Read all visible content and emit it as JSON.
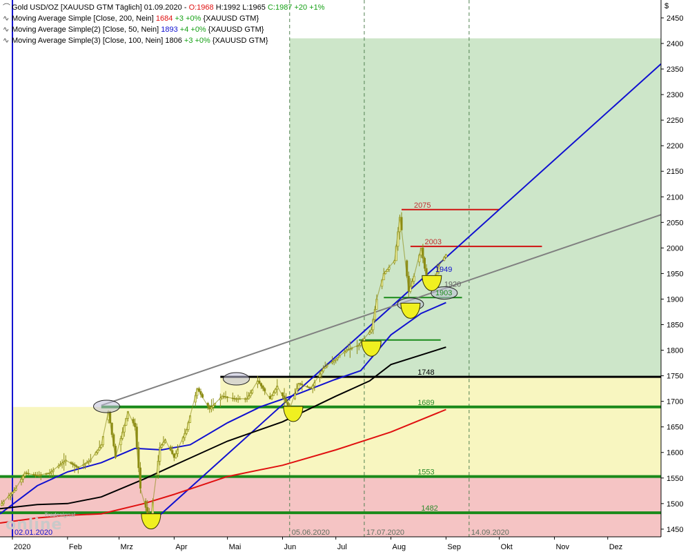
{
  "legend": {
    "main": {
      "prefix": "Gold USD/OZ [XAUUSD GTM  Täglich] 01.09.2020 - ",
      "o": "O:1968",
      "hl": " H:1992 L:1965 ",
      "c": "C:1987 +20 +1%"
    },
    "ma1": {
      "prefix": "Moving Average Simple [Close, 200, Nein] ",
      "value": "1684",
      "change": "+3 +0%",
      "suffix": " {XAUUSD GTM}"
    },
    "ma2": {
      "prefix": "Moving Average Simple(2) [Close, 50, Nein] ",
      "value": "1893",
      "change": "+4 +0%",
      "suffix": " {XAUUSD GTM}"
    },
    "ma3": {
      "prefix": "Moving Average Simple(3) [Close, 100, Nein] ",
      "value": "1806",
      "change": "+3 +0%",
      "suffix": " {XAUUSD GTM}"
    }
  },
  "logo": {
    "small": "Tradesignal",
    "big": "online"
  },
  "colors": {
    "red_zone": "#f5c4c4",
    "yellow_zone": "#f8f6c0",
    "green_zone": "#cde6c9",
    "price": "#8c8c14",
    "ma200": "#e01010",
    "ma50": "#1010d0",
    "ma100": "#000000",
    "trend_blue": "#1010d0",
    "trend_gray": "#808080",
    "support_green": "#1a8a1a"
  },
  "chart_data": {
    "type": "candlestick",
    "title": "Gold USD/OZ [XAUUSD GTM  Täglich]",
    "y_unit": "$",
    "ylim": [
      1435,
      2485
    ],
    "y_ticks": [
      1450,
      1500,
      1550,
      1600,
      1650,
      1700,
      1750,
      1800,
      1850,
      1900,
      1950,
      2000,
      2050,
      2100,
      2150,
      2200,
      2250,
      2300,
      2350,
      2400,
      2450
    ],
    "x_range": [
      "2019-12-25",
      "2020-12-31"
    ],
    "x_ticks": [
      {
        "label": "2020",
        "date": "2020-01-01"
      },
      {
        "label": "Feb",
        "date": "2020-02-01"
      },
      {
        "label": "Mrz",
        "date": "2020-03-01"
      },
      {
        "label": "Apr",
        "date": "2020-04-01"
      },
      {
        "label": "Mai",
        "date": "2020-05-01"
      },
      {
        "label": "Jun",
        "date": "2020-06-01"
      },
      {
        "label": "Jul",
        "date": "2020-07-01"
      },
      {
        "label": "Aug",
        "date": "2020-08-01"
      },
      {
        "label": "Sep",
        "date": "2020-09-01"
      },
      {
        "label": "Okt",
        "date": "2020-10-01"
      },
      {
        "label": "Nov",
        "date": "2020-11-01"
      },
      {
        "label": "Dez",
        "date": "2020-12-01"
      }
    ],
    "series": [
      {
        "name": "Gold USD/OZ",
        "kind": "price",
        "points": [
          [
            "2019-12-26",
            1500
          ],
          [
            "2020-01-03",
            1530
          ],
          [
            "2020-01-08",
            1560
          ],
          [
            "2020-01-15",
            1555
          ],
          [
            "2020-01-22",
            1560
          ],
          [
            "2020-01-31",
            1585
          ],
          [
            "2020-02-07",
            1570
          ],
          [
            "2020-02-14",
            1585
          ],
          [
            "2020-02-20",
            1615
          ],
          [
            "2020-02-24",
            1680
          ],
          [
            "2020-02-28",
            1590
          ],
          [
            "2020-03-03",
            1640
          ],
          [
            "2020-03-06",
            1680
          ],
          [
            "2020-03-10",
            1650
          ],
          [
            "2020-03-13",
            1530
          ],
          [
            "2020-03-17",
            1480
          ],
          [
            "2020-03-19",
            1475
          ],
          [
            "2020-03-24",
            1610
          ],
          [
            "2020-03-27",
            1625
          ],
          [
            "2020-04-01",
            1590
          ],
          [
            "2020-04-08",
            1645
          ],
          [
            "2020-04-14",
            1725
          ],
          [
            "2020-04-21",
            1685
          ],
          [
            "2020-04-28",
            1710
          ],
          [
            "2020-05-05",
            1705
          ],
          [
            "2020-05-12",
            1705
          ],
          [
            "2020-05-18",
            1740
          ],
          [
            "2020-05-25",
            1705
          ],
          [
            "2020-05-29",
            1730
          ],
          [
            "2020-06-05",
            1685
          ],
          [
            "2020-06-10",
            1735
          ],
          [
            "2020-06-17",
            1725
          ],
          [
            "2020-06-24",
            1765
          ],
          [
            "2020-06-30",
            1780
          ],
          [
            "2020-07-07",
            1800
          ],
          [
            "2020-07-14",
            1810
          ],
          [
            "2020-07-21",
            1840
          ],
          [
            "2020-07-24",
            1900
          ],
          [
            "2020-07-28",
            1950
          ],
          [
            "2020-08-03",
            1975
          ],
          [
            "2020-08-06",
            2060
          ],
          [
            "2020-08-07",
            2035
          ],
          [
            "2020-08-11",
            1915
          ],
          [
            "2020-08-14",
            1945
          ],
          [
            "2020-08-18",
            2000
          ],
          [
            "2020-08-21",
            1940
          ],
          [
            "2020-08-25",
            1930
          ],
          [
            "2020-08-28",
            1965
          ],
          [
            "2020-09-01",
            1987
          ]
        ]
      },
      {
        "name": "Moving Average Simple [Close, 200, Nein]",
        "kind": "ma200",
        "points": [
          [
            "2019-12-25",
            1462
          ],
          [
            "2020-01-15",
            1472
          ],
          [
            "2020-02-01",
            1477
          ],
          [
            "2020-02-20",
            1480
          ],
          [
            "2020-03-15",
            1500
          ],
          [
            "2020-04-01",
            1518
          ],
          [
            "2020-05-01",
            1553
          ],
          [
            "2020-06-01",
            1575
          ],
          [
            "2020-07-01",
            1605
          ],
          [
            "2020-08-01",
            1640
          ],
          [
            "2020-09-01",
            1684
          ]
        ]
      },
      {
        "name": "Moving Average Simple(2) [Close, 50, Nein]",
        "kind": "ma50",
        "points": [
          [
            "2019-12-25",
            1480
          ],
          [
            "2020-01-15",
            1535
          ],
          [
            "2020-02-01",
            1562
          ],
          [
            "2020-02-20",
            1580
          ],
          [
            "2020-03-10",
            1608
          ],
          [
            "2020-03-25",
            1605
          ],
          [
            "2020-04-10",
            1615
          ],
          [
            "2020-05-01",
            1658
          ],
          [
            "2020-05-20",
            1690
          ],
          [
            "2020-06-10",
            1715
          ],
          [
            "2020-06-30",
            1742
          ],
          [
            "2020-07-15",
            1760
          ],
          [
            "2020-08-01",
            1830
          ],
          [
            "2020-08-18",
            1872
          ],
          [
            "2020-09-01",
            1893
          ]
        ]
      },
      {
        "name": "Moving Average Simple(3) [Close, 100, Nein]",
        "kind": "ma100",
        "points": [
          [
            "2019-12-25",
            1490
          ],
          [
            "2020-01-15",
            1498
          ],
          [
            "2020-02-01",
            1500
          ],
          [
            "2020-02-20",
            1513
          ],
          [
            "2020-03-15",
            1548
          ],
          [
            "2020-04-01",
            1575
          ],
          [
            "2020-05-01",
            1622
          ],
          [
            "2020-06-01",
            1660
          ],
          [
            "2020-07-01",
            1710
          ],
          [
            "2020-07-20",
            1740
          ],
          [
            "2020-08-01",
            1772
          ],
          [
            "2020-09-01",
            1806
          ]
        ]
      }
    ],
    "zones": [
      {
        "kind": "red",
        "from": "2019-12-25",
        "to": "2020-12-31",
        "y_from": 1435,
        "y_to": 1553
      },
      {
        "kind": "yellow",
        "from": "2020-01-01",
        "to": "2020-12-31",
        "y_from": 1553,
        "y_to": 1689
      },
      {
        "kind": "yellow",
        "from": "2020-04-27",
        "to": "2020-12-31",
        "y_from": 1689,
        "y_to": 1748
      },
      {
        "kind": "green",
        "from": "2020-06-05",
        "to": "2020-12-31",
        "y_from": 1748,
        "y_to": 2410
      }
    ],
    "levels": [
      {
        "label": "2075",
        "value": 2075,
        "from": "2020-08-07",
        "to": "2020-10-01",
        "color": "#d01010",
        "label_color": "#c03030",
        "label_date": "2020-08-14",
        "width": 2
      },
      {
        "label": "2003",
        "value": 2003,
        "from": "2020-08-12",
        "to": "2020-10-25",
        "color": "#d01010",
        "label_color": "#c03030",
        "label_date": "2020-08-20",
        "width": 2
      },
      {
        "label": "1949",
        "value": 1949,
        "from": null,
        "to": null,
        "color": "none",
        "label_color": "#1010d0",
        "label_date": "2020-08-26",
        "width": 0
      },
      {
        "label": "1920",
        "value": 1920,
        "from": null,
        "to": null,
        "color": "none",
        "label_color": "#606060",
        "label_date": "2020-08-31",
        "width": 0
      },
      {
        "label": "1903",
        "value": 1903,
        "from": "2020-07-28",
        "to": "2020-09-10",
        "color": "#1a8a1a",
        "label_color": "#1a8a1a",
        "label_date": "2020-08-26",
        "width": 2
      },
      {
        "label": "",
        "value": 1820,
        "from": "2020-07-14",
        "to": "2020-08-29",
        "color": "#1a8a1a",
        "label_color": "#1a8a1a",
        "label_date": "2020-08-01",
        "width": 2
      },
      {
        "label": "1748",
        "value": 1748,
        "from": "2020-04-27",
        "to": "2020-12-31",
        "color": "#000000",
        "label_color": "#000000",
        "label_date": "2020-08-16",
        "width": 3
      },
      {
        "label": "1689",
        "value": 1689,
        "from": "2020-02-20",
        "to": "2020-12-31",
        "color": "#1a8a1a",
        "label_color": "#2a8a2a",
        "label_date": "2020-08-16",
        "width": 4
      },
      {
        "label": "1553",
        "value": 1553,
        "from": "2019-12-25",
        "to": "2020-12-31",
        "color": "#1a8a1a",
        "label_color": "#2a8a2a",
        "label_date": "2020-08-16",
        "width": 4
      },
      {
        "label": "1482",
        "value": 1482,
        "from": "2019-12-25",
        "to": "2020-12-31",
        "color": "#1a8a1a",
        "label_color": "#2a8a2a",
        "label_date": "2020-08-18",
        "width": 4
      }
    ],
    "trendlines": [
      {
        "kind": "trend_blue",
        "from": [
          "2020-03-19",
          1462
        ],
        "to": [
          "2020-12-31",
          2360
        ]
      },
      {
        "kind": "trend_gray",
        "from": [
          "2020-02-20",
          1692
        ],
        "to": [
          "2020-12-31",
          2065
        ]
      }
    ],
    "vlines": [
      {
        "date": "2020-01-01",
        "label": "02.01.2020",
        "style": "solid",
        "color": "#1010d0"
      },
      {
        "date": "2020-06-05",
        "label": "05.06.2020",
        "style": "dashed",
        "color": "#508050"
      },
      {
        "date": "2020-07-17",
        "label": "17.07.2020",
        "style": "dashed",
        "color": "#508050"
      },
      {
        "date": "2020-09-14",
        "label": "14.09.2020",
        "style": "dashed",
        "color": "#508050"
      }
    ],
    "highlights": [
      {
        "kind": "ellipse",
        "date": "2020-02-23",
        "value": 1690
      },
      {
        "kind": "ellipse",
        "date": "2020-05-06",
        "value": 1744
      },
      {
        "kind": "ellipse",
        "date": "2020-08-12",
        "value": 1890
      },
      {
        "kind": "ellipse",
        "date": "2020-08-31",
        "value": 1912
      },
      {
        "kind": "cup",
        "date": "2020-03-19",
        "value": 1480
      },
      {
        "kind": "cup",
        "date": "2020-06-07",
        "value": 1690
      },
      {
        "kind": "cup",
        "date": "2020-07-21",
        "value": 1818
      },
      {
        "kind": "cup",
        "date": "2020-08-12",
        "value": 1892
      },
      {
        "kind": "cup",
        "date": "2020-08-24",
        "value": 1946
      }
    ],
    "grid": false,
    "legend_position": "top-left"
  }
}
